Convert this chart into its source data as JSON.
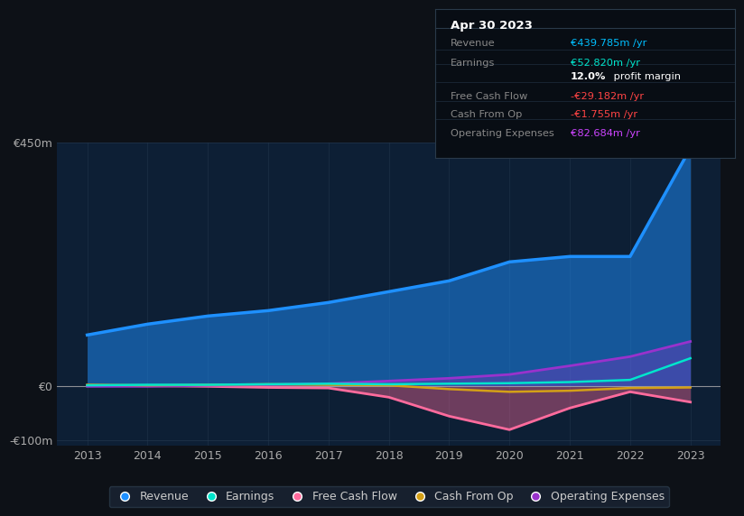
{
  "background_color": "#0d1117",
  "plot_bg_color": "#0d1f35",
  "title_box": {
    "date": "Apr 30 2023",
    "rows": [
      {
        "label": "Revenue",
        "value": "€439.785m /yr",
        "value_color": "#00bfff"
      },
      {
        "label": "Earnings",
        "value": "€52.820m /yr",
        "value_color": "#00e5cc"
      },
      {
        "label": "",
        "value": "12.0% profit margin",
        "value_color": "#ffffff"
      },
      {
        "label": "Free Cash Flow",
        "value": "-€29.182m /yr",
        "value_color": "#ff4444"
      },
      {
        "label": "Cash From Op",
        "value": "-€1.755m /yr",
        "value_color": "#ff4444"
      },
      {
        "label": "Operating Expenses",
        "value": "€82.684m /yr",
        "value_color": "#cc44ff"
      }
    ]
  },
  "years": [
    2013,
    2014,
    2015,
    2016,
    2017,
    2018,
    2019,
    2020,
    2021,
    2022,
    2023
  ],
  "revenue": [
    95,
    115,
    130,
    140,
    155,
    175,
    195,
    230,
    240,
    240,
    440
  ],
  "earnings": [
    2,
    3,
    3,
    4,
    5,
    4,
    5,
    6,
    8,
    12,
    52
  ],
  "free_cash_flow": [
    2,
    1,
    0,
    -2,
    -3,
    -20,
    -55,
    -80,
    -40,
    -10,
    -29
  ],
  "cash_from_op": [
    3,
    2,
    3,
    4,
    3,
    2,
    -5,
    -10,
    -8,
    -3,
    -2
  ],
  "operating_expenses": [
    0,
    0,
    2,
    3,
    5,
    10,
    15,
    22,
    38,
    55,
    83
  ],
  "ylabel_top": "€450m",
  "ylabel_zero": "€0",
  "ylabel_bottom": "-€100m",
  "ylim": [
    -110,
    450
  ],
  "colors": {
    "revenue": "#1e90ff",
    "earnings": "#00e5cc",
    "free_cash_flow": "#ff6b9d",
    "cash_from_op": "#d4a017",
    "operating_expenses": "#9932cc"
  },
  "legend": [
    {
      "label": "Revenue",
      "color": "#1e90ff"
    },
    {
      "label": "Earnings",
      "color": "#00e5cc"
    },
    {
      "label": "Free Cash Flow",
      "color": "#ff6b9d"
    },
    {
      "label": "Cash From Op",
      "color": "#d4a017"
    },
    {
      "label": "Operating Expenses",
      "color": "#9932cc"
    }
  ]
}
